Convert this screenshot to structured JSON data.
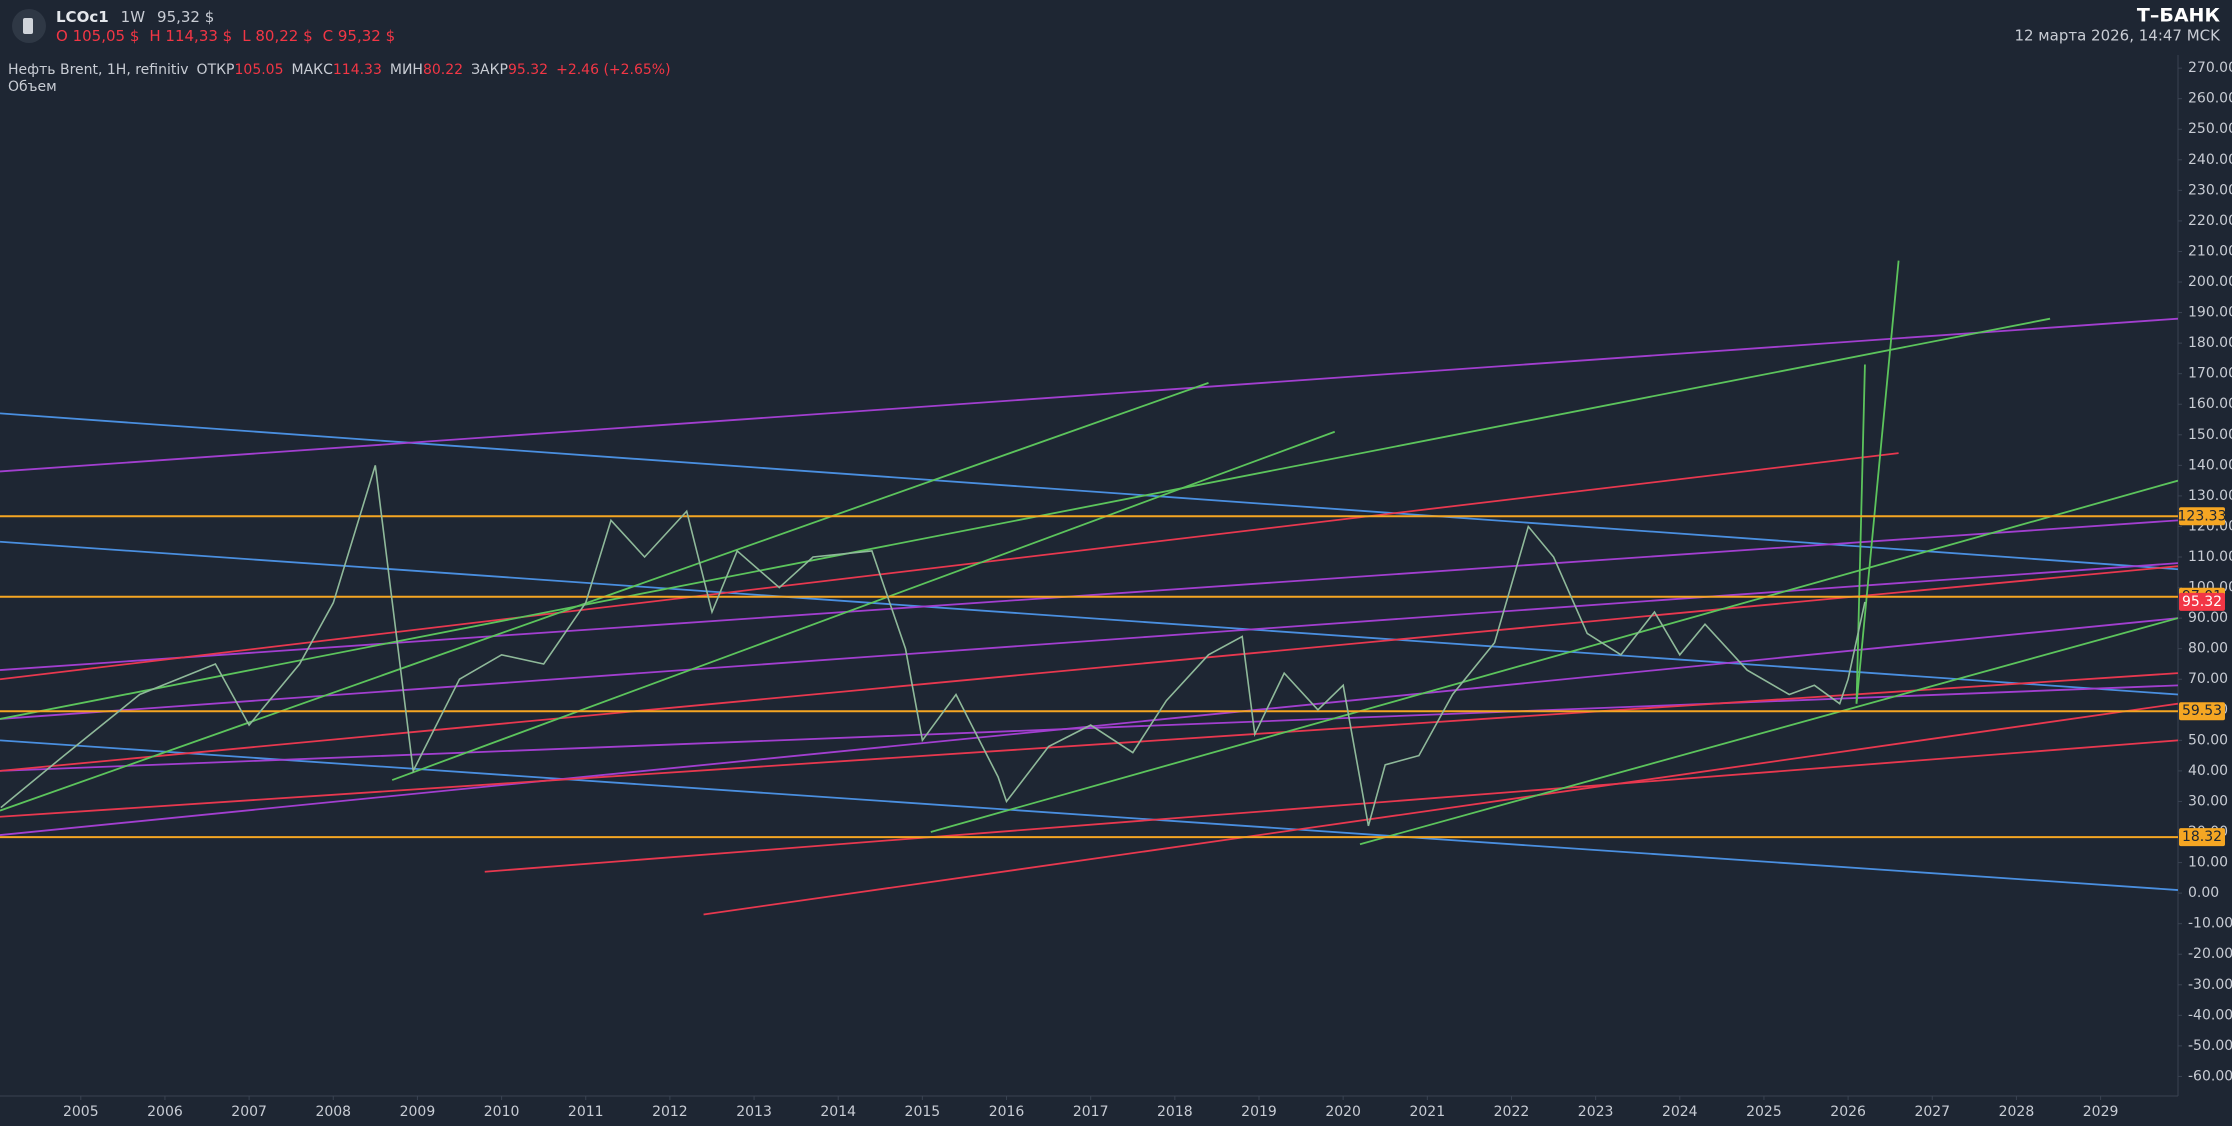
{
  "header": {
    "symbol": "LCOc1",
    "interval": "1W",
    "price": "95,32 $",
    "open": "O 105,05 $",
    "high": "H 114,33 $",
    "low": "L 80,22 $",
    "close": "C 95,32 $",
    "brand": "T–БАНК",
    "datetime": "12 марта 2026, 14:47 MCK"
  },
  "legend": {
    "name": "Нефть Brent, 1H, refinitiv",
    "open_label": "ОТКР",
    "open": "105.05",
    "high_label": "МАКС",
    "high": "114.33",
    "low_label": "МИН",
    "low": "80.22",
    "close_label": "ЗАКР",
    "close": "95.32",
    "change": "+2.46 (+2.65%)",
    "volume": "Объем"
  },
  "chart_data": {
    "type": "line",
    "xlim": [
      2004.04,
      2029.92
    ],
    "ylim": [
      -66.4,
      274.3
    ],
    "xticks": [
      2005,
      2006,
      2007,
      2008,
      2009,
      2010,
      2011,
      2012,
      2013,
      2014,
      2015,
      2016,
      2017,
      2018,
      2019,
      2020,
      2021,
      2022,
      2023,
      2024,
      2025,
      2026,
      2027,
      2028,
      2029
    ],
    "yticks": [
      {
        "value": -60,
        "label": "-60.00"
      },
      {
        "value": -50,
        "label": "-50.00"
      },
      {
        "value": -40,
        "label": "-40.00"
      },
      {
        "value": -30,
        "label": "-30.00"
      },
      {
        "value": -20,
        "label": "-20.00"
      },
      {
        "value": -10,
        "label": "-10.00"
      },
      {
        "value": 0,
        "label": "0.00"
      },
      {
        "value": 10,
        "label": "10.00"
      },
      {
        "value": 20,
        "label": "20.00"
      },
      {
        "value": 30,
        "label": "30.00"
      },
      {
        "value": 40,
        "label": "40.00"
      },
      {
        "value": 50,
        "label": "50.00"
      },
      {
        "value": 60,
        "label": "60.00"
      },
      {
        "value": 70,
        "label": "70.00"
      },
      {
        "value": 80,
        "label": "80.00"
      },
      {
        "value": 90,
        "label": "90.00"
      },
      {
        "value": 100,
        "label": "100.00"
      },
      {
        "value": 110,
        "label": "110.00"
      },
      {
        "value": 120,
        "label": "120.00"
      },
      {
        "value": 130,
        "label": "130.00"
      },
      {
        "value": 140,
        "label": "140.00"
      },
      {
        "value": 150,
        "label": "150.00"
      },
      {
        "value": 160,
        "label": "160.00"
      },
      {
        "value": 170,
        "label": "170.00"
      },
      {
        "value": 180,
        "label": "180.00"
      },
      {
        "value": 190,
        "label": "190.00"
      },
      {
        "value": 200,
        "label": "200.00"
      },
      {
        "value": 210,
        "label": "210.00"
      },
      {
        "value": 220,
        "label": "220.00"
      },
      {
        "value": 230,
        "label": "230.00"
      },
      {
        "value": 240,
        "label": "240.00"
      },
      {
        "value": 250,
        "label": "250.00"
      },
      {
        "value": 260,
        "label": "260.00"
      },
      {
        "value": 270,
        "label": "270.00"
      }
    ],
    "series": [
      {
        "color": "#8fb99a",
        "x": [
          2004.05,
          2004.8,
          2005.7,
          2006.6,
          2007.0,
          2007.6,
          2008.0,
          2008.5,
          2008.95,
          2009.5,
          2010.0,
          2010.5,
          2011.0,
          2011.3,
          2011.7,
          2012.2,
          2012.5,
          2012.8,
          2013.3,
          2013.7,
          2014.4,
          2014.8,
          2015.0,
          2015.4,
          2015.9,
          2016.0,
          2016.5,
          2017.0,
          2017.5,
          2017.9,
          2018.4,
          2018.8,
          2018.95,
          2019.3,
          2019.7,
          2020.0,
          2020.3,
          2020.5,
          2020.9,
          2021.3,
          2021.8,
          2022.2,
          2022.5,
          2022.9,
          2023.3,
          2023.7,
          2024.0,
          2024.3,
          2024.8,
          2025.3,
          2025.6,
          2025.9,
          2026.0,
          2026.2
        ],
        "values": [
          28,
          45,
          65,
          75,
          55,
          75,
          95,
          140,
          40,
          70,
          78,
          75,
          95,
          122,
          110,
          125,
          92,
          112,
          100,
          110,
          112,
          80,
          50,
          65,
          38,
          30,
          48,
          55,
          46,
          63,
          78,
          84,
          52,
          72,
          60,
          68,
          22,
          42,
          45,
          65,
          82,
          120,
          110,
          85,
          78,
          92,
          78,
          88,
          73,
          65,
          68,
          62,
          70,
          95.32
        ]
      }
    ],
    "last_price": 95.32,
    "last_price_color": "#f23645",
    "levels": [
      123.33,
      97.01,
      59.53,
      18.32
    ],
    "level_color": "#f5a623",
    "trendlines": [
      {
        "color": "#4a8fe0",
        "x": [
          2004.04,
          2029.92
        ],
        "y": [
          157,
          106
        ]
      },
      {
        "color": "#4a8fe0",
        "x": [
          2004.04,
          2029.92
        ],
        "y": [
          115,
          65
        ]
      },
      {
        "color": "#4a8fe0",
        "x": [
          2004.04,
          2029.92
        ],
        "y": [
          50,
          1
        ]
      },
      {
        "color": "#a23fd0",
        "x": [
          2004.04,
          2029.92
        ],
        "y": [
          138,
          188
        ]
      },
      {
        "color": "#a23fd0",
        "x": [
          2004.04,
          2029.92
        ],
        "y": [
          73,
          122
        ]
      },
      {
        "color": "#a23fd0",
        "x": [
          2004.04,
          2029.92
        ],
        "y": [
          57,
          108
        ]
      },
      {
        "color": "#a23fd0",
        "x": [
          2004.04,
          2029.92
        ],
        "y": [
          19,
          90
        ]
      },
      {
        "color": "#a23fd0",
        "x": [
          2004.04,
          2029.92
        ],
        "y": [
          40,
          68
        ]
      },
      {
        "color": "#e8384f",
        "x": [
          2004.04,
          2026.6
        ],
        "y": [
          70,
          144
        ]
      },
      {
        "color": "#e8384f",
        "x": [
          2004.04,
          2029.92
        ],
        "y": [
          40,
          107
        ]
      },
      {
        "color": "#e8384f",
        "x": [
          2004.04,
          2029.92
        ],
        "y": [
          25,
          72
        ]
      },
      {
        "color": "#e8384f",
        "x": [
          2009.8,
          2029.92
        ],
        "y": [
          7,
          50
        ]
      },
      {
        "color": "#e8384f",
        "x": [
          2012.4,
          2029.92
        ],
        "y": [
          -7,
          62
        ]
      },
      {
        "color": "#5cc45c",
        "x": [
          2004.04,
          2018.4
        ],
        "y": [
          27,
          167
        ]
      },
      {
        "color": "#5cc45c",
        "x": [
          2008.7,
          2019.9
        ],
        "y": [
          37,
          151
        ]
      },
      {
        "color": "#5cc45c",
        "x": [
          2004.04,
          2028.4
        ],
        "y": [
          57,
          188
        ]
      },
      {
        "color": "#5cc45c",
        "x": [
          2015.1,
          2029.92
        ],
        "y": [
          20,
          135
        ]
      },
      {
        "color": "#5cc45c",
        "x": [
          2020.2,
          2029.92
        ],
        "y": [
          16,
          90
        ]
      },
      {
        "color": "#5cc45c",
        "x": [
          2026.1,
          2026.6
        ],
        "y": [
          62,
          207
        ]
      },
      {
        "color": "#5cc45c",
        "x": [
          2026.1,
          2026.2
        ],
        "y": [
          62,
          173
        ]
      }
    ]
  }
}
